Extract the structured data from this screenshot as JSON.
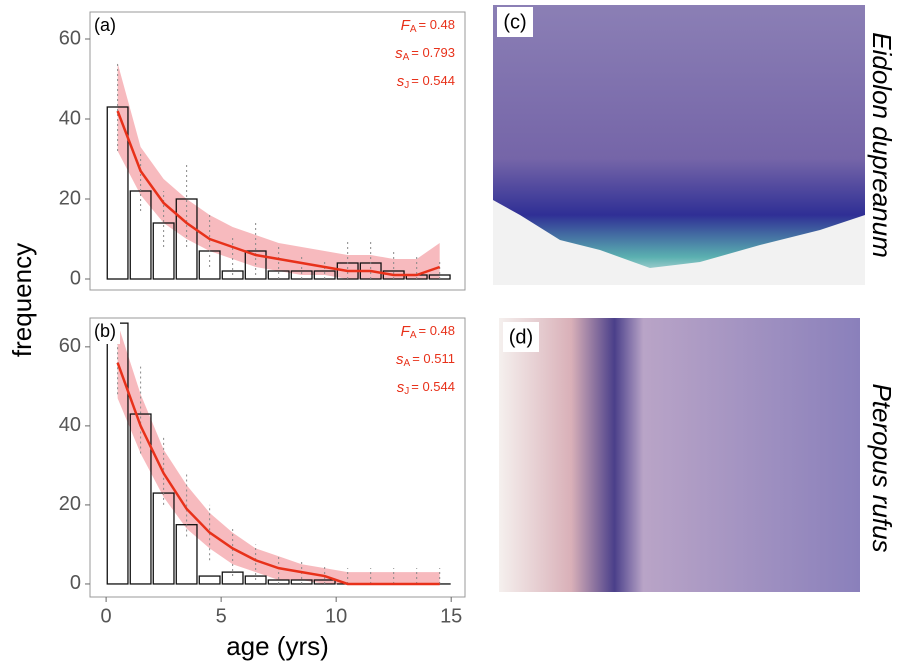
{
  "chart_data": [
    {
      "type": "bar",
      "label": "(a)",
      "ylabel": "frequency",
      "x": [
        0.5,
        1.5,
        2.5,
        3.5,
        4.5,
        5.5,
        6.5,
        7.5,
        8.5,
        9.5,
        10.5,
        11.5,
        12.5,
        13.5,
        14.5
      ],
      "values": [
        43,
        22,
        14,
        20,
        7,
        2,
        7,
        2,
        2,
        2,
        4,
        4,
        2,
        1,
        1
      ],
      "fit": [
        42,
        27,
        19,
        14,
        10,
        8,
        6,
        5,
        4,
        3,
        2,
        2,
        1,
        1,
        3
      ],
      "fit_low": [
        32,
        21,
        14,
        10,
        7,
        5,
        3,
        2,
        1,
        1,
        0,
        0,
        0,
        0,
        0
      ],
      "fit_high": [
        54,
        33,
        25,
        20,
        16,
        13,
        11,
        9,
        8,
        7,
        6,
        6,
        5,
        5,
        9
      ],
      "intervals": [
        [
          32,
          54
        ],
        [
          17,
          32
        ],
        [
          8,
          22
        ],
        [
          8,
          29
        ],
        [
          3,
          16
        ],
        [
          1,
          11
        ],
        [
          1,
          14
        ],
        [
          0,
          8
        ],
        [
          0,
          6
        ],
        [
          0,
          5
        ],
        [
          0,
          10
        ],
        [
          0,
          10
        ],
        [
          0,
          7
        ],
        [
          0,
          6
        ],
        [
          0,
          5
        ]
      ],
      "color": "#e8311a",
      "band_color": "#f4a3a8",
      "xlim": [
        -0.7,
        15.6
      ],
      "ylim": [
        -2.75,
        66.75
      ],
      "yticks": [
        0,
        20,
        40,
        60
      ],
      "annotations": [
        {
          "symbol": "F",
          "sub": "A",
          "text": "= 0.48"
        },
        {
          "symbol": "s",
          "sub": "A",
          "text": "= 0.793"
        },
        {
          "symbol": "s",
          "sub": "J",
          "text": "= 0.544"
        }
      ]
    },
    {
      "type": "bar",
      "label": "(b)",
      "xlabel": "age (yrs)",
      "x": [
        0.5,
        1.5,
        2.5,
        3.5,
        4.5,
        5.5,
        6.5,
        7.5,
        8.5,
        9.5,
        10.5,
        11.5,
        12.5,
        13.5,
        14.5
      ],
      "values": [
        66,
        43,
        23,
        15,
        2,
        3,
        2,
        1,
        1,
        1,
        0,
        0,
        0,
        0,
        0
      ],
      "fit": [
        56,
        40,
        28,
        19,
        13,
        9,
        6,
        4,
        3,
        2,
        0,
        0,
        0,
        0,
        0
      ],
      "fit_low": [
        47,
        33,
        22,
        14,
        9,
        5,
        3,
        1,
        1,
        0,
        0,
        0,
        0,
        0,
        0
      ],
      "fit_high": [
        66,
        48,
        34,
        25,
        18,
        13,
        9,
        7,
        5,
        4,
        3,
        3,
        3,
        3,
        3
      ],
      "intervals": [
        [
          48,
          66
        ],
        [
          33,
          55
        ],
        [
          20,
          37
        ],
        [
          12,
          28
        ],
        [
          6,
          20
        ],
        [
          2,
          14
        ],
        [
          1,
          10
        ],
        [
          0,
          7
        ],
        [
          0,
          6
        ],
        [
          0,
          5
        ],
        [
          0,
          4
        ],
        [
          0,
          4
        ],
        [
          0,
          4
        ],
        [
          0,
          4
        ],
        [
          0,
          4
        ]
      ],
      "color": "#e8311a",
      "band_color": "#f4a3a8",
      "xlim": [
        -0.7,
        15.6
      ],
      "ylim": [
        -3.3,
        67.3
      ],
      "xticks": [
        0,
        5,
        10,
        15
      ],
      "yticks": [
        0,
        20,
        40,
        60
      ],
      "annotations": [
        {
          "symbol": "F",
          "sub": "A",
          "text": "= 0.48"
        },
        {
          "symbol": "s",
          "sub": "A",
          "text": "= 0.511"
        },
        {
          "symbol": "s",
          "sub": "J",
          "text": "= 0.544"
        }
      ]
    }
  ],
  "panels": [
    {
      "label": "(c)",
      "species": "Eidolon dupreanum"
    },
    {
      "label": "(d)",
      "species": "Pteropus rufus"
    }
  ]
}
